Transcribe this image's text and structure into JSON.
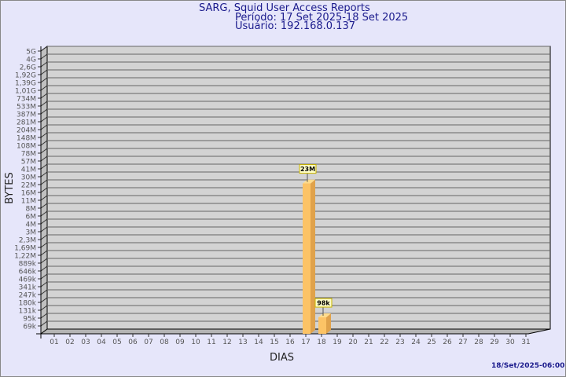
{
  "chart_data": {
    "type": "bar",
    "title": "SARG, Squid User Access Reports",
    "subtitle": [
      "Período: 17 Set 2025-18 Set 2025",
      "Usuário: 192.168.0.137"
    ],
    "xlabel": "DIAS",
    "ylabel": "BYTES",
    "yscale": "log",
    "grid": true,
    "categories": [
      "01",
      "02",
      "03",
      "04",
      "05",
      "06",
      "07",
      "08",
      "09",
      "10",
      "11",
      "12",
      "13",
      "14",
      "15",
      "16",
      "17",
      "18",
      "19",
      "20",
      "21",
      "22",
      "23",
      "24",
      "25",
      "26",
      "27",
      "28",
      "29",
      "30",
      "31"
    ],
    "ytick_labels": [
      "5G",
      "4G",
      "2,6G",
      "1,92G",
      "1,39G",
      "1,01G",
      "734M",
      "533M",
      "387M",
      "281M",
      "204M",
      "148M",
      "108M",
      "78M",
      "57M",
      "41M",
      "30M",
      "22M",
      "16M",
      "11M",
      "8M",
      "6M",
      "4M",
      "3M",
      "2,3M",
      "1,69M",
      "1,22M",
      "889k",
      "646k",
      "469k",
      "341k",
      "247k",
      "180k",
      "131k",
      "95k",
      "69k"
    ],
    "ytick_values": [
      5000000000.0,
      4000000000.0,
      2600000000.0,
      1920000000.0,
      1390000000.0,
      1010000000.0,
      734000000.0,
      533000000.0,
      387000000.0,
      281000000.0,
      204000000.0,
      148000000.0,
      108000000.0,
      78000000.0,
      57000000.0,
      41000000.0,
      30000000.0,
      22000000.0,
      16000000.0,
      11000000.0,
      8000000.0,
      6000000.0,
      4000000.0,
      3000000.0,
      2300000.0,
      1690000.0,
      1220000.0,
      889000.0,
      646000.0,
      469000.0,
      341000.0,
      247000.0,
      180000.0,
      131000.0,
      95000.0,
      69000.0
    ],
    "bars": [
      {
        "category": "17",
        "value": 23000000,
        "label": "23M"
      },
      {
        "category": "18",
        "value": 98000,
        "label": "98k"
      }
    ],
    "colors": {
      "bar_front": "#fcc366",
      "bar_side": "#e0a24b",
      "bar_top": "#ffdc8c",
      "plot": "#d3d3d3",
      "label_box": "#ffffc8"
    }
  },
  "footer": {
    "timestamp": "18/Set/2025-06:00"
  }
}
